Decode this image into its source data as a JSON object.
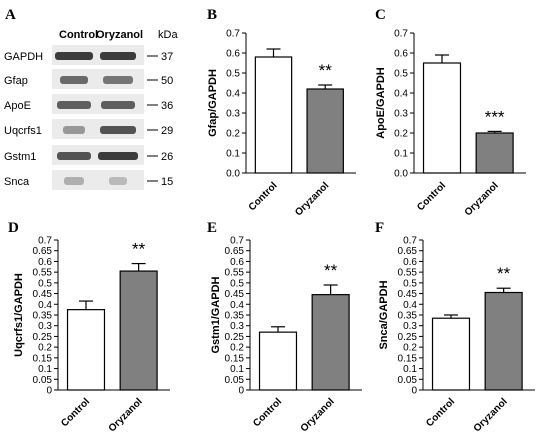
{
  "panel_a": {
    "letter": "A",
    "lanes": [
      "Control",
      "Oryzanol"
    ],
    "kda_label": "kDa",
    "bands": [
      {
        "name": "GAPDH",
        "kda": "37"
      },
      {
        "name": "Gfap",
        "kda": "50"
      },
      {
        "name": "ApoE",
        "kda": "36"
      },
      {
        "name": "Uqcrfs1",
        "kda": "29"
      },
      {
        "name": "Gstm1",
        "kda": "26"
      },
      {
        "name": "Snca",
        "kda": "15"
      }
    ]
  },
  "chart_data": [
    {
      "letter": "B",
      "type": "bar",
      "categories": [
        "Control",
        "Oryzanol"
      ],
      "values": [
        0.58,
        0.42
      ],
      "errors": [
        0.04,
        0.02
      ],
      "fills": [
        "#ffffff",
        "#808080"
      ],
      "significance": "**",
      "ylabel": "Gfap/GAPDH",
      "ylim": [
        0,
        0.7
      ],
      "yticks": [
        "0.0",
        "0.1",
        "0.2",
        "0.3",
        "0.4",
        "0.5",
        "0.6",
        "0.7"
      ]
    },
    {
      "letter": "C",
      "type": "bar",
      "categories": [
        "Control",
        "Oryzanol"
      ],
      "values": [
        0.55,
        0.2
      ],
      "errors": [
        0.04,
        0.008
      ],
      "fills": [
        "#ffffff",
        "#808080"
      ],
      "significance": "***",
      "ylabel": "ApoE/GAPDH",
      "ylim": [
        0,
        0.7
      ],
      "yticks": [
        "0.0",
        "0.1",
        "0.2",
        "0.3",
        "0.4",
        "0.5",
        "0.6",
        "0.7"
      ]
    },
    {
      "letter": "D",
      "type": "bar",
      "categories": [
        "Control",
        "Oryzanol"
      ],
      "values": [
        0.375,
        0.555
      ],
      "errors": [
        0.04,
        0.035
      ],
      "fills": [
        "#ffffff",
        "#808080"
      ],
      "significance": "**",
      "ylabel": "Uqcrfs1/GAPDH",
      "ylim": [
        0,
        0.7
      ],
      "yticks": [
        "0",
        "0.05",
        "0.1",
        "0.15",
        "0.2",
        "0.25",
        "0.3",
        "0.35",
        "0.4",
        "0.45",
        "0.5",
        "0.55",
        "0.6",
        "0.65",
        "0.7"
      ]
    },
    {
      "letter": "E",
      "type": "bar",
      "categories": [
        "Control",
        "Oryzanol"
      ],
      "values": [
        0.27,
        0.445
      ],
      "errors": [
        0.025,
        0.045
      ],
      "fills": [
        "#ffffff",
        "#808080"
      ],
      "significance": "**",
      "ylabel": "Gstm1/GAPDH",
      "ylim": [
        0,
        0.7
      ],
      "yticks": [
        "0",
        "0.05",
        "0.1",
        "0.15",
        "0.2",
        "0.25",
        "0.3",
        "0.35",
        "0.4",
        "0.45",
        "0.5",
        "0.55",
        "0.6",
        "0.65",
        "0.7"
      ]
    },
    {
      "letter": "F",
      "type": "bar",
      "categories": [
        "Control",
        "Oryzanol"
      ],
      "values": [
        0.335,
        0.455
      ],
      "errors": [
        0.015,
        0.02
      ],
      "fills": [
        "#ffffff",
        "#808080"
      ],
      "significance": "**",
      "ylabel": "Snca/GAPDH",
      "ylim": [
        0,
        0.7
      ],
      "yticks": [
        "0",
        "0.05",
        "0.1",
        "0.15",
        "0.2",
        "0.25",
        "0.3",
        "0.35",
        "0.4",
        "0.45",
        "0.5",
        "0.55",
        "0.6",
        "0.65",
        "0.7"
      ]
    }
  ]
}
